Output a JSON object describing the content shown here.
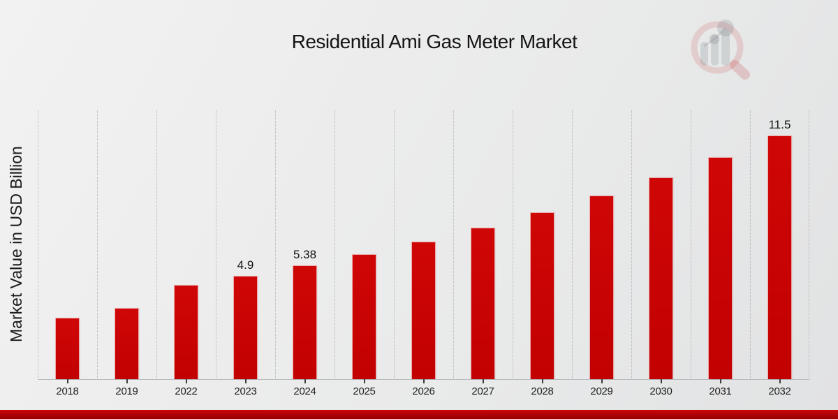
{
  "title": "Residential Ami Gas Meter Market",
  "y_axis_label": "Market Value in USD Billion",
  "watermark_icon": "magnifier-bar-chart-logo",
  "colors": {
    "bar_fill": "#c90303",
    "grid_line": "#a0a6aa",
    "axis_line": "#b4b9bc",
    "text": "#141414",
    "banner_red": "#b30202",
    "background": "#ebebec"
  },
  "chart_data": {
    "type": "bar",
    "title": "Residential Ami Gas Meter Market",
    "xlabel": "",
    "ylabel": "Market Value in USD Billion",
    "categories": [
      "2018",
      "2019",
      "2022",
      "2023",
      "2024",
      "2025",
      "2026",
      "2027",
      "2028",
      "2029",
      "2030",
      "2031",
      "2032"
    ],
    "values": [
      2.9,
      3.37,
      4.46,
      4.9,
      5.38,
      5.92,
      6.51,
      7.16,
      7.88,
      8.67,
      9.53,
      10.49,
      11.5
    ],
    "data_labels": [
      "",
      "",
      "",
      "4.9",
      "5.38",
      "",
      "",
      "",
      "",
      "",
      "",
      "",
      "11.5"
    ],
    "ylim": [
      0,
      12.7
    ],
    "grid": "vertical",
    "legend": "none"
  }
}
